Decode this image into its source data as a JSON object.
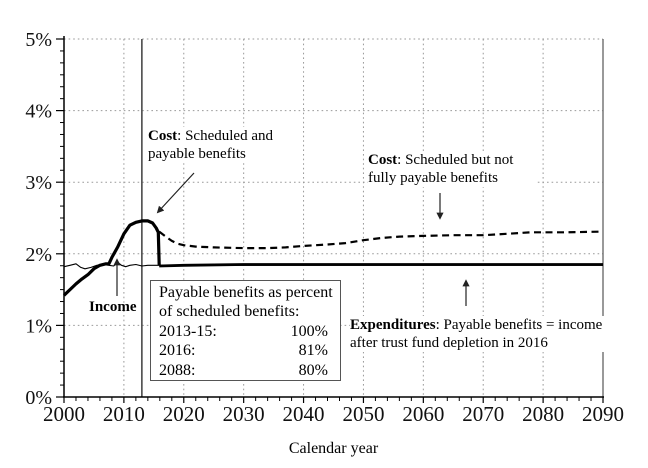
{
  "chart_data": {
    "type": "line",
    "title": "",
    "xlabel": "Calendar year",
    "ylabel": "",
    "xlim": [
      2000,
      2090
    ],
    "ylim": [
      0,
      5
    ],
    "x_ticks": [
      2000,
      2010,
      2020,
      2030,
      2040,
      2050,
      2060,
      2070,
      2080,
      2090
    ],
    "y_ticks": [
      "0%",
      "1%",
      "2%",
      "3%",
      "4%",
      "5%"
    ],
    "grid": "dotted",
    "historical_boundary_year": 2013,
    "series": [
      {
        "id": "income-line",
        "name": "Income",
        "line": "solid",
        "width": 1.1,
        "points": [
          [
            2000,
            1.82
          ],
          [
            2001,
            1.84
          ],
          [
            2002,
            1.86
          ],
          [
            2002.8,
            1.81
          ],
          [
            2003.5,
            1.79
          ],
          [
            2004.5,
            1.81
          ],
          [
            2005.5,
            1.84
          ],
          [
            2006.5,
            1.85
          ],
          [
            2007.5,
            1.84
          ],
          [
            2008.3,
            1.83
          ],
          [
            2009,
            1.88
          ],
          [
            2009.6,
            1.84
          ],
          [
            2010.3,
            1.82
          ],
          [
            2011,
            1.84
          ],
          [
            2012,
            1.85
          ],
          [
            2013,
            1.83
          ],
          [
            2014,
            1.84
          ],
          [
            2016,
            1.84
          ],
          [
            2020,
            1.84
          ],
          [
            2090,
            1.84
          ]
        ]
      },
      {
        "id": "scheduled-cost-line",
        "name": "Cost: Scheduled but not fully payable benefits",
        "line": "dashed",
        "width": 2.2,
        "points": [
          [
            2015.9,
            2.31
          ],
          [
            2017,
            2.24
          ],
          [
            2018,
            2.18
          ],
          [
            2019,
            2.14
          ],
          [
            2020,
            2.12
          ],
          [
            2022,
            2.1
          ],
          [
            2025,
            2.09
          ],
          [
            2030,
            2.08
          ],
          [
            2034,
            2.08
          ],
          [
            2037,
            2.09
          ],
          [
            2040,
            2.11
          ],
          [
            2044,
            2.13
          ],
          [
            2047,
            2.15
          ],
          [
            2050,
            2.19
          ],
          [
            2053,
            2.22
          ],
          [
            2056,
            2.24
          ],
          [
            2060,
            2.25
          ],
          [
            2065,
            2.26
          ],
          [
            2070,
            2.26
          ],
          [
            2074,
            2.28
          ],
          [
            2078,
            2.3
          ],
          [
            2084,
            2.3
          ],
          [
            2090,
            2.31
          ]
        ]
      },
      {
        "id": "cost-payable-line",
        "name": "Cost: Scheduled and payable benefits",
        "line": "solid",
        "width": 3.2,
        "points": [
          [
            2000,
            1.42
          ],
          [
            2001,
            1.5
          ],
          [
            2002,
            1.58
          ],
          [
            2003,
            1.65
          ],
          [
            2004,
            1.71
          ],
          [
            2005,
            1.79
          ],
          [
            2006,
            1.84
          ],
          [
            2007,
            1.86
          ],
          [
            2007.5,
            1.86
          ],
          [
            2008,
            1.95
          ],
          [
            2009,
            2.1
          ],
          [
            2010,
            2.28
          ],
          [
            2011,
            2.4
          ],
          [
            2012,
            2.44
          ],
          [
            2013,
            2.46
          ],
          [
            2014,
            2.46
          ],
          [
            2014.8,
            2.43
          ],
          [
            2015.4,
            2.36
          ],
          [
            2015.75,
            2.3
          ],
          [
            2015.9,
            1.84
          ]
        ]
      },
      {
        "id": "expenditures-line",
        "name": "Expenditures: Payable benefits = income after trust fund depletion in 2016",
        "line": "solid",
        "width": 2.8,
        "points": [
          [
            2015.9,
            1.83
          ],
          [
            2020,
            1.84
          ],
          [
            2030,
            1.85
          ],
          [
            2045,
            1.85
          ],
          [
            2060,
            1.85
          ],
          [
            2075,
            1.85
          ],
          [
            2090,
            1.85
          ]
        ]
      }
    ],
    "annotations": {
      "cost_payable": {
        "lead": "Cost",
        "text": ": Scheduled and payable benefits"
      },
      "cost_scheduled": {
        "lead": "Cost",
        "text": ": Scheduled but not fully payable benefits"
      },
      "income": {
        "lead": "Income",
        "text": ""
      },
      "expenditures": {
        "lead": "Expenditures",
        "text": ": Payable benefits = income after trust fund depletion in 2016"
      }
    },
    "infobox": {
      "heading_line1": "Payable benefits as percent",
      "heading_line2": "of scheduled benefits:",
      "rows": [
        {
          "label": "2013-15:",
          "value": "100%"
        },
        {
          "label": "2016:",
          "value": "81%"
        },
        {
          "label": "2088:",
          "value": "80%"
        }
      ]
    }
  }
}
